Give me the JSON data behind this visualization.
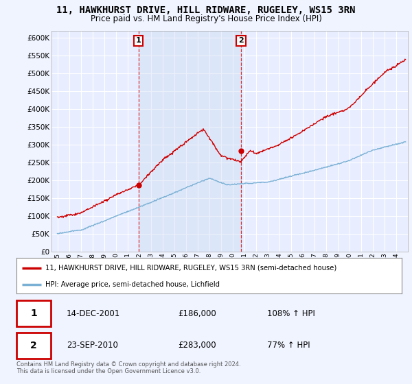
{
  "title": "11, HAWKHURST DRIVE, HILL RIDWARE, RUGELEY, WS15 3RN",
  "subtitle": "Price paid vs. HM Land Registry's House Price Index (HPI)",
  "legend_line1": "11, HAWKHURST DRIVE, HILL RIDWARE, RUGELEY, WS15 3RN (semi-detached house)",
  "legend_line2": "HPI: Average price, semi-detached house, Lichfield",
  "transaction1_date": "14-DEC-2001",
  "transaction1_price": "£186,000",
  "transaction1_hpi": "108% ↑ HPI",
  "transaction2_date": "23-SEP-2010",
  "transaction2_price": "£283,000",
  "transaction2_hpi": "77% ↑ HPI",
  "footer": "Contains HM Land Registry data © Crown copyright and database right 2024.\nThis data is licensed under the Open Government Licence v3.0.",
  "red_color": "#cc0000",
  "blue_color": "#7ab0d4",
  "shade_color": "#ddeeff",
  "background_color": "#f0f4ff",
  "plot_bg_color": "#e8eeff",
  "grid_color": "#d0d8e8",
  "ylim": [
    0,
    620000
  ],
  "yticks": [
    0,
    50000,
    100000,
    150000,
    200000,
    250000,
    300000,
    350000,
    400000,
    450000,
    500000,
    550000,
    600000
  ],
  "ytick_labels": [
    "£0",
    "£50K",
    "£100K",
    "£150K",
    "£200K",
    "£250K",
    "£300K",
    "£350K",
    "£400K",
    "£450K",
    "£500K",
    "£550K",
    "£600K"
  ],
  "xmin": 1994.5,
  "xmax": 2025.0,
  "marker1_x": 2001.95,
  "marker1_y": 186000,
  "marker2_x": 2010.72,
  "marker2_y": 283000,
  "vline1_x": 2001.95,
  "vline2_x": 2010.72,
  "xtick_years": [
    1995,
    1996,
    1997,
    1998,
    1999,
    2000,
    2001,
    2002,
    2003,
    2004,
    2005,
    2006,
    2007,
    2008,
    2009,
    2010,
    2011,
    2012,
    2013,
    2014,
    2015,
    2016,
    2017,
    2018,
    2019,
    2020,
    2021,
    2022,
    2023,
    2024
  ]
}
